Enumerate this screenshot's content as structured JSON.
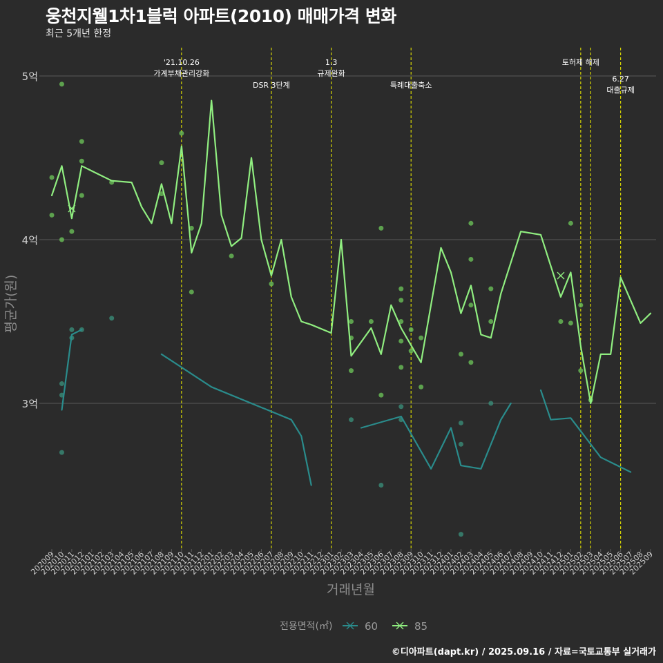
{
  "header": {
    "title": "웅천지웰1차1블럭 아파트(2010) 매매가격 변화",
    "subtitle": "최근 5개년 한정",
    "caption": "©디아파트(dapt.kr) / 2025.09.16 / 자료=국토교통부 실거래가"
  },
  "colors": {
    "background": "#2b2b2b",
    "grid": "#5a5a5a",
    "vline": "#e6e600",
    "series_60": "#2a8c8c",
    "series_85": "#90ee80",
    "points_60": "#3a8c78",
    "points_85": "#6abf58"
  },
  "chart_data": {
    "type": "line",
    "title": "웅천지웰1차1블럭 아파트(2010) 매매가격 변화",
    "subtitle": "최근 5개년 한정",
    "xlabel": "거래년월",
    "ylabel": "평균가(원)",
    "x": [
      "202009",
      "202010",
      "202011",
      "202012",
      "202101",
      "202102",
      "202103",
      "202104",
      "202105",
      "202106",
      "202107",
      "202108",
      "202109",
      "202110",
      "202111",
      "202112",
      "202201",
      "202202",
      "202203",
      "202204",
      "202205",
      "202206",
      "202207",
      "202208",
      "202209",
      "202210",
      "202211",
      "202212",
      "202301",
      "202302",
      "202303",
      "202304",
      "202305",
      "202306",
      "202307",
      "202308",
      "202309",
      "202310",
      "202311",
      "202312",
      "202401",
      "202402",
      "202403",
      "202404",
      "202405",
      "202406",
      "202407",
      "202408",
      "202409",
      "202410",
      "202411",
      "202412",
      "202501",
      "202502",
      "202503",
      "202504",
      "202505",
      "202506",
      "202507",
      "202508",
      "202509"
    ],
    "y_ticks": [
      {
        "value": 3.0,
        "label": "3억"
      },
      {
        "value": 4.0,
        "label": "4억"
      },
      {
        "value": 5.0,
        "label": "5억"
      }
    ],
    "ylim": [
      1.9,
      5.3
    ],
    "grid": true,
    "legend": {
      "title": "전용면적(㎡)",
      "position": "bottom",
      "entries": [
        "60",
        "85"
      ]
    },
    "series": [
      {
        "name": "60",
        "color": "#2a8c8c",
        "line_segments": [
          [
            [
              "202010",
              2.96
            ],
            [
              "202011",
              3.42
            ],
            [
              "202012",
              3.45
            ]
          ],
          [
            [
              "202108",
              3.3
            ],
            [
              "202201",
              3.1
            ],
            [
              "202209",
              2.9
            ],
            [
              "202210",
              2.8
            ],
            [
              "202211",
              2.5
            ]
          ],
          [
            [
              "202304",
              2.85
            ],
            [
              "202308",
              2.92
            ],
            [
              "202311",
              2.6
            ],
            [
              "202401",
              2.85
            ],
            [
              "202402",
              2.62
            ],
            [
              "202404",
              2.6
            ],
            [
              "202406",
              2.9
            ],
            [
              "202407",
              3.0
            ]
          ],
          [
            [
              "202410",
              3.08
            ],
            [
              "202411",
              2.9
            ],
            [
              "202501",
              2.91
            ],
            [
              "202504",
              2.67
            ],
            [
              "202507",
              2.58
            ]
          ]
        ],
        "points": [
          [
            "202010",
            3.12
          ],
          [
            "202010",
            3.05
          ],
          [
            "202010",
            2.7
          ],
          [
            "202011",
            3.45
          ],
          [
            "202011",
            3.4
          ],
          [
            "202012",
            3.45
          ],
          [
            "202103",
            3.52
          ],
          [
            "202303",
            2.9
          ],
          [
            "202306",
            2.5
          ],
          [
            "202308",
            2.98
          ],
          [
            "202308",
            2.9
          ],
          [
            "202402",
            2.88
          ],
          [
            "202402",
            2.75
          ],
          [
            "202402",
            2.2
          ],
          [
            "202405",
            3.0
          ]
        ],
        "cross_points": []
      },
      {
        "name": "85",
        "color": "#90ee80",
        "line_segments": [
          [
            [
              "202009",
              4.27
            ],
            [
              "202010",
              4.45
            ],
            [
              "202011",
              4.13
            ],
            [
              "202012",
              4.45
            ],
            [
              "202103",
              4.36
            ],
            [
              "202105",
              4.35
            ],
            [
              "202106",
              4.2
            ],
            [
              "202107",
              4.1
            ],
            [
              "202108",
              4.34
            ],
            [
              "202109",
              4.1
            ],
            [
              "202110",
              4.57
            ],
            [
              "202111",
              3.92
            ],
            [
              "202112",
              4.1
            ],
            [
              "202201",
              4.85
            ],
            [
              "202202",
              4.15
            ],
            [
              "202203",
              3.96
            ],
            [
              "202204",
              4.01
            ],
            [
              "202205",
              4.5
            ],
            [
              "202206",
              4.0
            ],
            [
              "202207",
              3.78
            ],
            [
              "202208",
              4.0
            ],
            [
              "202209",
              3.65
            ],
            [
              "202210",
              3.5
            ],
            [
              "202211",
              3.48
            ],
            [
              "202301",
              3.43
            ],
            [
              "202302",
              4.0
            ],
            [
              "202303",
              3.29
            ],
            [
              "202305",
              3.46
            ],
            [
              "202306",
              3.3
            ],
            [
              "202307",
              3.6
            ],
            [
              "202308",
              3.46
            ],
            [
              "202310",
              3.25
            ],
            [
              "202312",
              3.95
            ],
            [
              "202401",
              3.8
            ],
            [
              "202402",
              3.55
            ],
            [
              "202403",
              3.72
            ],
            [
              "202404",
              3.42
            ],
            [
              "202405",
              3.4
            ],
            [
              "202406",
              3.67
            ],
            [
              "202408",
              4.05
            ],
            [
              "202410",
              4.03
            ],
            [
              "202412",
              3.65
            ],
            [
              "202501",
              3.8
            ],
            [
              "202502",
              3.35
            ],
            [
              "202503",
              3.0
            ],
            [
              "202504",
              3.3
            ],
            [
              "202505",
              3.3
            ],
            [
              "202506",
              3.77
            ],
            [
              "202508",
              3.49
            ],
            [
              "202509",
              3.55
            ]
          ]
        ],
        "points": [
          [
            "202009",
            4.38
          ],
          [
            "202009",
            4.15
          ],
          [
            "202010",
            4.95
          ],
          [
            "202010",
            4.0
          ],
          [
            "202011",
            4.05
          ],
          [
            "202012",
            4.6
          ],
          [
            "202012",
            4.48
          ],
          [
            "202012",
            4.27
          ],
          [
            "202103",
            4.35
          ],
          [
            "202108",
            4.47
          ],
          [
            "202108",
            4.28
          ],
          [
            "202110",
            4.65
          ],
          [
            "202111",
            4.07
          ],
          [
            "202111",
            3.68
          ],
          [
            "202203",
            3.9
          ],
          [
            "202207",
            3.73
          ],
          [
            "202303",
            3.5
          ],
          [
            "202303",
            3.4
          ],
          [
            "202303",
            3.2
          ],
          [
            "202305",
            3.5
          ],
          [
            "202306",
            4.07
          ],
          [
            "202306",
            3.05
          ],
          [
            "202308",
            3.7
          ],
          [
            "202308",
            3.63
          ],
          [
            "202308",
            3.5
          ],
          [
            "202308",
            3.38
          ],
          [
            "202308",
            3.22
          ],
          [
            "202309",
            3.45
          ],
          [
            "202309",
            3.32
          ],
          [
            "202310",
            3.4
          ],
          [
            "202310",
            3.1
          ],
          [
            "202402",
            3.3
          ],
          [
            "202403",
            4.1
          ],
          [
            "202403",
            3.88
          ],
          [
            "202403",
            3.6
          ],
          [
            "202403",
            3.25
          ],
          [
            "202405",
            3.7
          ],
          [
            "202405",
            3.5
          ],
          [
            "202412",
            3.5
          ],
          [
            "202501",
            4.1
          ],
          [
            "202501",
            3.49
          ],
          [
            "202502",
            3.6
          ],
          [
            "202502",
            3.2
          ],
          [
            "202503",
            3.02
          ]
        ],
        "cross_points": [
          [
            "202011",
            4.19
          ],
          [
            "202412",
            3.78
          ]
        ]
      }
    ],
    "annotations": [
      {
        "x": "202110",
        "lines": [
          "'21.10.26",
          "가계부채관리강화"
        ],
        "level": 1
      },
      {
        "x": "202207",
        "lines": [
          "DSR 3단계"
        ],
        "level": 2
      },
      {
        "x": "202301",
        "lines": [
          "1.3",
          "규제완화"
        ],
        "level": 1
      },
      {
        "x": "202309",
        "lines": [
          "특례대출축소"
        ],
        "level": 2
      },
      {
        "x": "202502",
        "lines": [
          "토허제 해제"
        ],
        "level": 1
      },
      {
        "x": "202503",
        "lines": [],
        "level": 0
      },
      {
        "x": "202506",
        "lines": [
          "6.27",
          "대출규제"
        ],
        "level": 3
      }
    ]
  }
}
